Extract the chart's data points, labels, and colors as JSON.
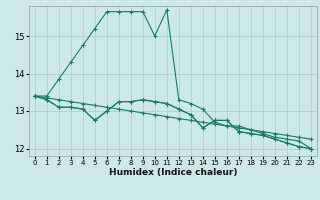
{
  "xlabel": "Humidex (Indice chaleur)",
  "background_color": "#cce8e8",
  "grid_color": "#aacccc",
  "line_color": "#1a7a6a",
  "xlim": [
    -0.5,
    23.5
  ],
  "ylim": [
    11.8,
    15.8
  ],
  "yticks": [
    12,
    13,
    14,
    15
  ],
  "xticks": [
    0,
    1,
    2,
    3,
    4,
    5,
    6,
    7,
    8,
    9,
    10,
    11,
    12,
    13,
    14,
    15,
    16,
    17,
    18,
    19,
    20,
    21,
    22,
    23
  ],
  "series1": [
    13.4,
    13.4,
    13.85,
    14.3,
    14.75,
    15.2,
    15.65,
    15.65,
    15.65,
    15.65,
    15.0,
    15.7,
    13.3,
    13.2,
    13.05,
    12.7,
    12.6,
    12.6,
    12.5,
    12.4,
    12.3,
    12.25,
    12.2,
    12.0
  ],
  "series2": [
    13.4,
    13.3,
    13.1,
    13.1,
    13.05,
    12.75,
    13.0,
    13.25,
    13.25,
    13.3,
    13.25,
    13.2,
    13.05,
    12.9,
    12.55,
    12.75,
    12.75,
    12.45,
    12.4,
    12.35,
    12.25,
    12.15,
    12.05,
    12.0
  ],
  "series3": [
    13.4,
    13.3,
    13.1,
    13.1,
    13.05,
    12.75,
    13.0,
    13.25,
    13.25,
    13.3,
    13.25,
    13.2,
    13.05,
    12.9,
    12.55,
    12.75,
    12.75,
    12.45,
    12.4,
    12.35,
    12.25,
    12.15,
    12.05,
    12.0
  ],
  "series4": [
    13.4,
    13.35,
    13.3,
    13.25,
    13.2,
    13.15,
    13.1,
    13.05,
    13.0,
    12.95,
    12.9,
    12.85,
    12.8,
    12.75,
    12.7,
    12.65,
    12.6,
    12.55,
    12.5,
    12.45,
    12.4,
    12.35,
    12.3,
    12.25
  ]
}
